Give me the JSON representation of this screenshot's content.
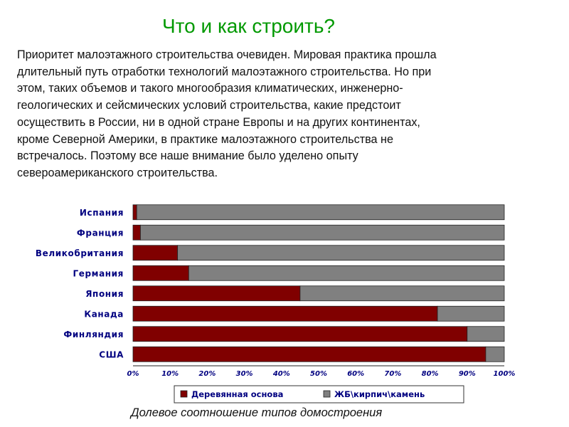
{
  "slide": {
    "title": "Что и как строить?",
    "paragraph_lines": [
      "Приоритет малоэтажного строительства очевиден. Мировая практика  прошла",
      "длительный путь отработки технологий малоэтажного строительства. Но при",
      "этом, таких объемов  и такого многообразия климатических, инженерно-",
      "геологических и сейсмических условий строительства, какие предстоит",
      "осуществить в России, ни в одной  стране Европы и на других континентах,",
      "кроме Северной Америки, в практике малоэтажного строительства не",
      "встречалось. Поэтому все наше внимание было уделено опыту",
      "североамериканского строительства."
    ],
    "caption": "Долевое соотношение типов домостроения"
  },
  "chart_data": {
    "type": "bar",
    "orientation": "horizontal",
    "stacked": "percent",
    "categories": [
      "Испания",
      "Франция",
      "Великобритания",
      "Германия",
      "Япония",
      "Канада",
      "Финляндия",
      "США"
    ],
    "series": [
      {
        "name": "Деревянная основа",
        "color": "#800000",
        "values": [
          1,
          2,
          12,
          15,
          45,
          82,
          90,
          95
        ]
      },
      {
        "name": "ЖБ\\кирпич\\камень",
        "color": "#808080",
        "values": [
          99,
          98,
          88,
          85,
          55,
          18,
          10,
          5
        ]
      }
    ],
    "xticks": [
      "0%",
      "10%",
      "20%",
      "30%",
      "40%",
      "50%",
      "60%",
      "70%",
      "80%",
      "90%",
      "100%"
    ],
    "xlim": [
      0,
      100
    ],
    "grid": false,
    "legend_position": "bottom"
  }
}
